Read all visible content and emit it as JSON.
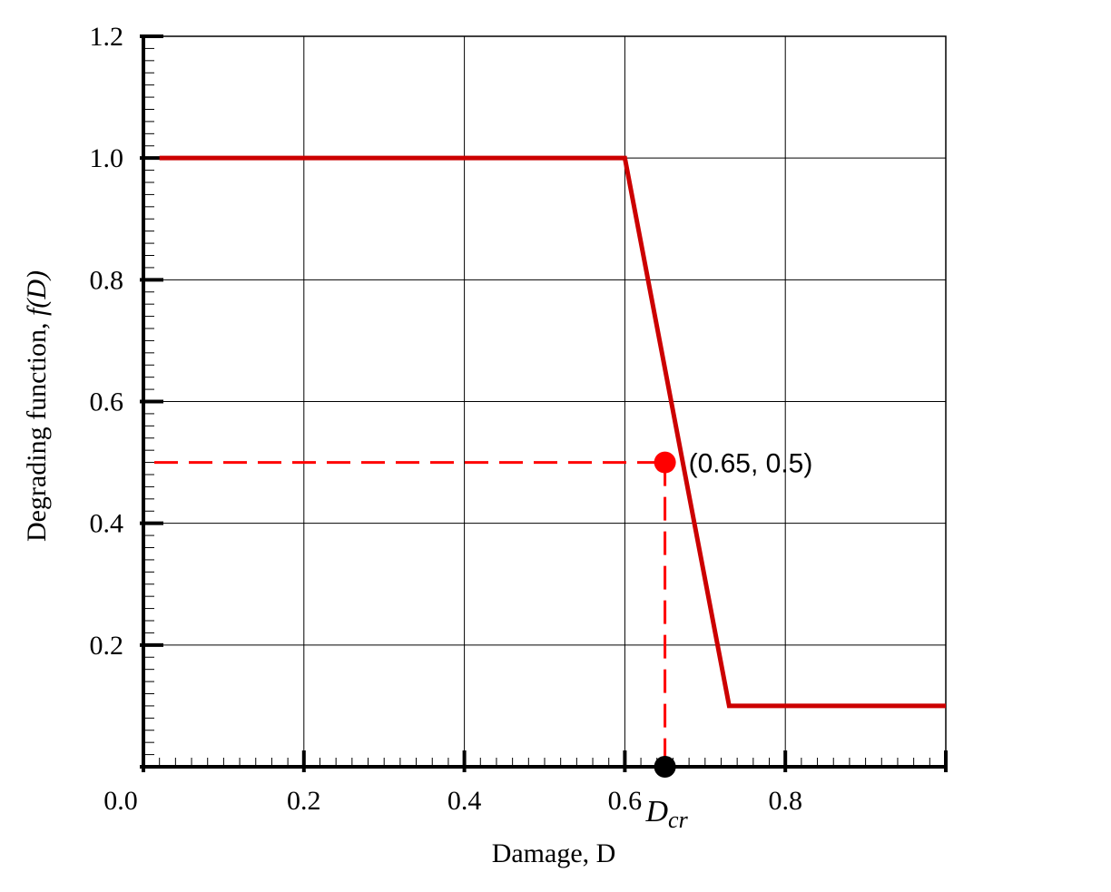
{
  "chart_data": {
    "type": "line",
    "xlabel": "Damage, D",
    "ylabel_prefix": "Degrading function, ",
    "ylabel_math": "f(D)",
    "xlim": [
      0.0,
      1.0
    ],
    "ylim": [
      0.0,
      1.2
    ],
    "x_ticks": [
      0.0,
      0.2,
      0.4,
      0.6,
      0.8
    ],
    "x_tick_labels": [
      "0.0",
      "0.2",
      "0.4",
      "0.6",
      "0.8"
    ],
    "y_ticks": [
      0.2,
      0.4,
      0.6,
      0.8,
      1.0,
      1.2
    ],
    "y_tick_labels": [
      "0.2",
      "0.4",
      "0.6",
      "0.8",
      "1.0",
      "1.2"
    ],
    "grid": true,
    "series": [
      {
        "color": "#cc0000",
        "x": [
          0.02,
          0.6,
          0.73,
          1.0
        ],
        "y": [
          1.0,
          1.0,
          0.1,
          0.1
        ]
      }
    ],
    "annotations": {
      "point": {
        "x": 0.65,
        "y": 0.5,
        "label": "(0.65, 0.5)",
        "color": "#ff0000"
      },
      "critical": {
        "x": 0.65,
        "y": 0.0,
        "label_main": "D",
        "label_sub": "cr",
        "color": "#000000"
      },
      "guide_color": "#ff0000"
    }
  }
}
